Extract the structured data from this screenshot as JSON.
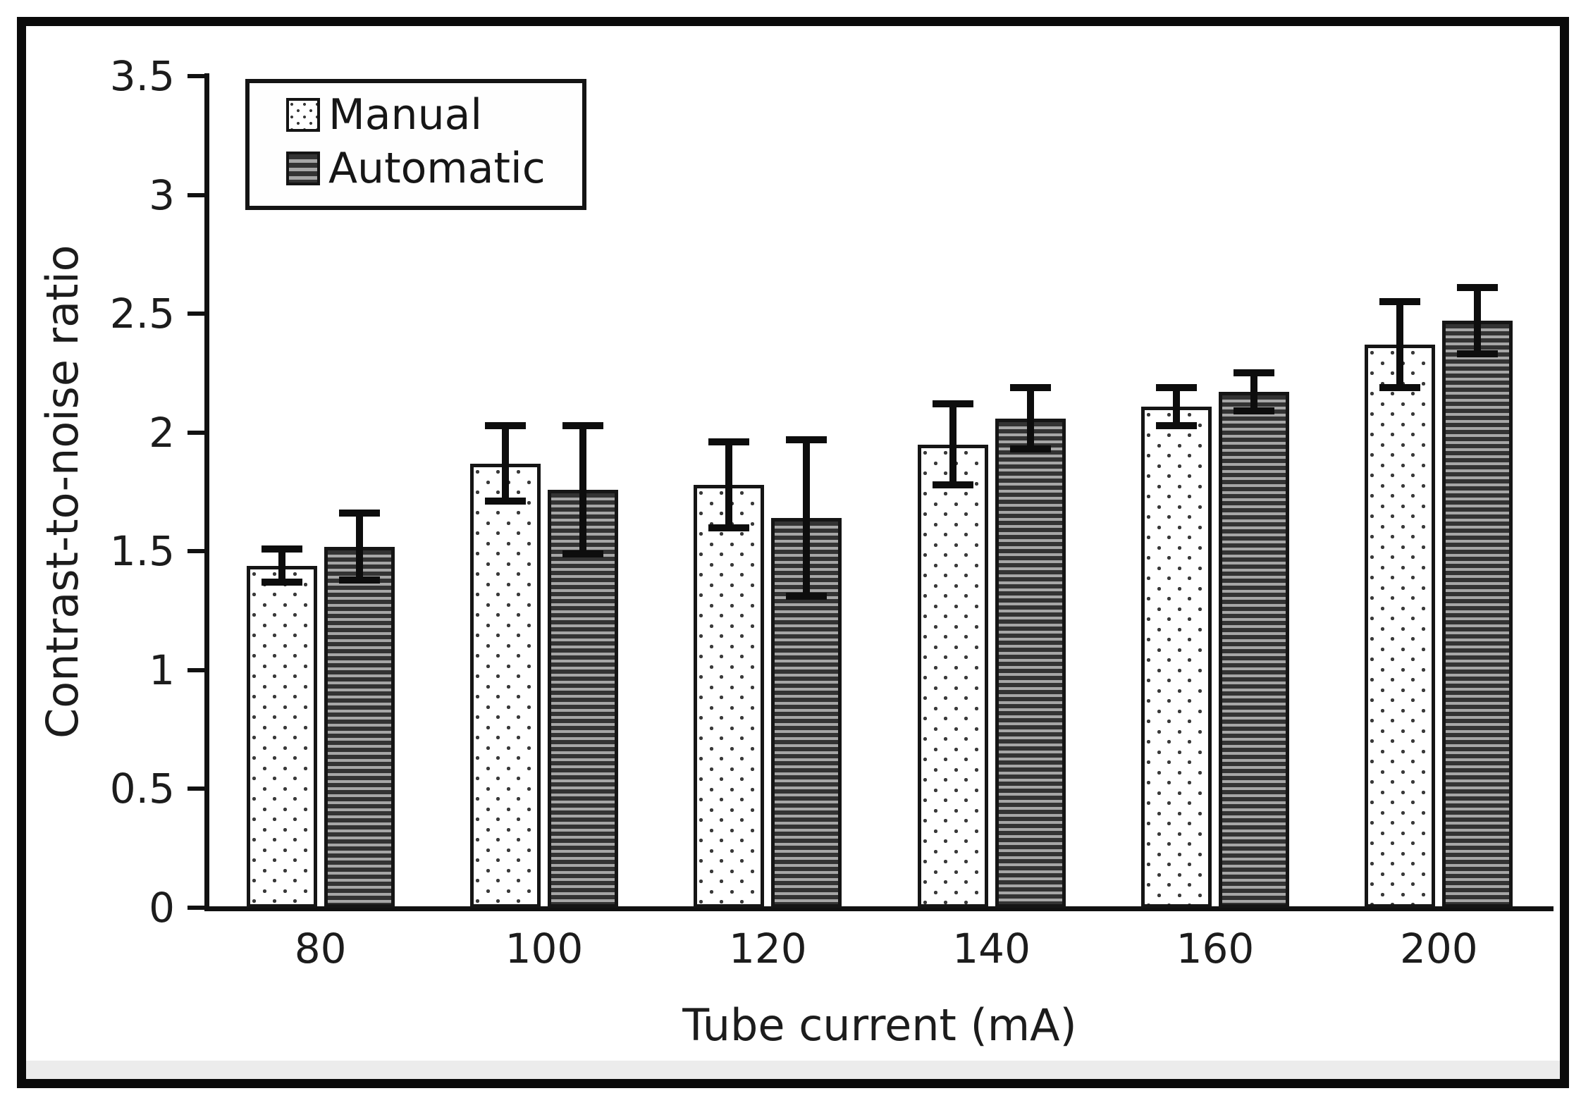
{
  "chart_data": {
    "type": "bar",
    "title": "",
    "xlabel": "Tube current (mA)",
    "ylabel": "Contrast-to-noise ratio",
    "categories": [
      "80",
      "100",
      "120",
      "140",
      "160",
      "200"
    ],
    "series": [
      {
        "name": "Manual",
        "pattern": "dots",
        "values": [
          1.44,
          1.87,
          1.78,
          1.95,
          2.11,
          2.37
        ],
        "errors": [
          0.07,
          0.16,
          0.18,
          0.17,
          0.08,
          0.18
        ]
      },
      {
        "name": "Automatic",
        "pattern": "hlines",
        "values": [
          1.52,
          1.76,
          1.64,
          2.06,
          2.17,
          2.47
        ],
        "errors": [
          0.14,
          0.27,
          0.33,
          0.13,
          0.08,
          0.14
        ]
      }
    ],
    "ylim": [
      0,
      3.5
    ],
    "yticks": [
      "0",
      "0.5",
      "1",
      "1.5",
      "2",
      "2.5",
      "3",
      "3.5"
    ],
    "legend_position": "top-left",
    "grid": false,
    "error_bars": true
  },
  "colors": {
    "frame": "#0a0a0a",
    "axis": "#111111",
    "text": "#1c1c1c",
    "bar_border": "#151515",
    "error_bar": "#0d0d0d",
    "stripe_dark": "#333333",
    "stripe_light": "#a6a6a6",
    "dot": "#3a3a3a",
    "background": "#ffffff"
  }
}
